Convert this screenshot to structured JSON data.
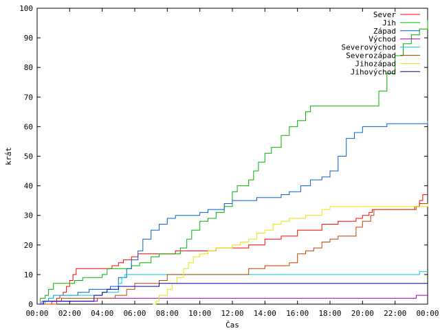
{
  "chart_data": {
    "type": "line",
    "title": "",
    "xlabel": "Čas",
    "ylabel": "krát",
    "xlim": [
      0,
      24
    ],
    "ylim": [
      0,
      100
    ],
    "grid": false,
    "legend_position": "top-right",
    "x_ticks": [
      0,
      2,
      4,
      6,
      8,
      10,
      12,
      14,
      16,
      18,
      20,
      22,
      24
    ],
    "x_tick_labels": [
      "00:00",
      "02:00",
      "04:00",
      "06:00",
      "08:00",
      "10:00",
      "12:00",
      "14:00",
      "16:00",
      "18:00",
      "20:00",
      "22:00",
      "00:00"
    ],
    "y_ticks": [
      0,
      10,
      20,
      30,
      40,
      50,
      60,
      70,
      80,
      90,
      100
    ],
    "y_tick_labels": [
      "0",
      "10",
      "20",
      "30",
      "40",
      "50",
      "60",
      "70",
      "80",
      "90",
      "100"
    ],
    "series": [
      {
        "name": "Sever",
        "color": "#ff0000",
        "points": [
          [
            0.6,
            0
          ],
          [
            0.9,
            1
          ],
          [
            1.2,
            2
          ],
          [
            1.4,
            3
          ],
          [
            1.6,
            4
          ],
          [
            1.8,
            6
          ],
          [
            2.0,
            8
          ],
          [
            2.2,
            10
          ],
          [
            2.4,
            12
          ],
          [
            3.5,
            12
          ],
          [
            4.5,
            12
          ],
          [
            4.6,
            13
          ],
          [
            5.0,
            14
          ],
          [
            5.3,
            15
          ],
          [
            5.8,
            16
          ],
          [
            6.2,
            17
          ],
          [
            7.0,
            17
          ],
          [
            7.8,
            17
          ],
          [
            8.5,
            18
          ],
          [
            11.0,
            19
          ],
          [
            12.0,
            19
          ],
          [
            13.0,
            20
          ],
          [
            14.0,
            22
          ],
          [
            15.0,
            23
          ],
          [
            16.0,
            25
          ],
          [
            17.0,
            25
          ],
          [
            17.5,
            27
          ],
          [
            18.5,
            28
          ],
          [
            19.0,
            28
          ],
          [
            19.6,
            29
          ],
          [
            20.0,
            30
          ],
          [
            20.4,
            31
          ],
          [
            20.6,
            32
          ],
          [
            23.0,
            32
          ],
          [
            23.2,
            33
          ],
          [
            23.5,
            35
          ],
          [
            23.7,
            37
          ],
          [
            24.0,
            37
          ]
        ]
      },
      {
        "name": "Jih",
        "color": "#00b000",
        "points": [
          [
            0,
            0
          ],
          [
            0.2,
            2
          ],
          [
            0.5,
            3
          ],
          [
            0.7,
            5
          ],
          [
            1.0,
            7
          ],
          [
            2.0,
            7
          ],
          [
            2.3,
            8
          ],
          [
            2.8,
            9
          ],
          [
            3.5,
            9
          ],
          [
            4.0,
            10
          ],
          [
            4.3,
            12
          ],
          [
            5.0,
            12
          ],
          [
            5.8,
            13
          ],
          [
            6.3,
            14
          ],
          [
            7.0,
            16
          ],
          [
            7.5,
            17
          ],
          [
            8.3,
            17
          ],
          [
            8.8,
            19
          ],
          [
            9.2,
            22
          ],
          [
            9.5,
            25
          ],
          [
            10.0,
            28
          ],
          [
            10.5,
            29
          ],
          [
            11.0,
            31
          ],
          [
            11.5,
            33
          ],
          [
            12.0,
            38
          ],
          [
            12.3,
            40
          ],
          [
            13.0,
            42
          ],
          [
            13.3,
            45
          ],
          [
            13.6,
            48
          ],
          [
            14.0,
            51
          ],
          [
            14.4,
            53
          ],
          [
            15.0,
            57
          ],
          [
            15.5,
            60
          ],
          [
            16.0,
            62
          ],
          [
            16.5,
            65
          ],
          [
            16.8,
            67
          ],
          [
            18.0,
            67
          ],
          [
            20.0,
            67
          ],
          [
            20.5,
            67
          ],
          [
            21.0,
            72
          ],
          [
            21.5,
            78
          ],
          [
            22.0,
            84
          ],
          [
            22.5,
            88
          ],
          [
            23.0,
            91
          ],
          [
            23.5,
            93
          ],
          [
            24.0,
            96
          ]
        ]
      },
      {
        "name": "Západ",
        "color": "#0060d0",
        "points": [
          [
            0,
            0
          ],
          [
            0.4,
            1
          ],
          [
            0.7,
            2
          ],
          [
            1.0,
            3
          ],
          [
            2.0,
            3
          ],
          [
            2.5,
            4
          ],
          [
            3.2,
            5
          ],
          [
            4.0,
            5
          ],
          [
            4.5,
            6
          ],
          [
            5.0,
            9
          ],
          [
            5.5,
            12
          ],
          [
            5.8,
            15
          ],
          [
            6.2,
            18
          ],
          [
            6.5,
            22
          ],
          [
            7.0,
            25
          ],
          [
            7.5,
            27
          ],
          [
            8.0,
            29
          ],
          [
            8.5,
            30
          ],
          [
            9.5,
            30
          ],
          [
            10.0,
            31
          ],
          [
            10.5,
            32
          ],
          [
            11.0,
            32
          ],
          [
            11.5,
            34
          ],
          [
            12.0,
            35
          ],
          [
            13.0,
            35
          ],
          [
            13.5,
            36
          ],
          [
            15.0,
            37
          ],
          [
            15.5,
            38
          ],
          [
            16.2,
            40
          ],
          [
            16.8,
            42
          ],
          [
            17.5,
            43
          ],
          [
            18.0,
            45
          ],
          [
            18.5,
            50
          ],
          [
            19.0,
            56
          ],
          [
            19.5,
            58
          ],
          [
            20.0,
            60
          ],
          [
            21.0,
            60
          ],
          [
            21.5,
            61
          ],
          [
            23.5,
            61
          ],
          [
            24.0,
            62
          ]
        ]
      },
      {
        "name": "Východ",
        "color": "#a000c0",
        "points": [
          [
            0,
            0
          ],
          [
            0.3,
            1
          ],
          [
            3.5,
            1
          ],
          [
            3.7,
            2
          ],
          [
            23.0,
            2
          ],
          [
            23.3,
            3
          ],
          [
            24.0,
            3
          ]
        ]
      },
      {
        "name": "Severovýchod",
        "color": "#00c8e8",
        "points": [
          [
            0,
            0
          ],
          [
            0.5,
            1
          ],
          [
            0.7,
            2
          ],
          [
            1.0,
            3
          ],
          [
            3.5,
            3
          ],
          [
            4.0,
            4
          ],
          [
            5.0,
            7
          ],
          [
            5.2,
            9
          ],
          [
            5.4,
            10
          ],
          [
            10.0,
            10
          ],
          [
            20.0,
            10
          ],
          [
            23.5,
            11
          ],
          [
            24.0,
            11
          ]
        ]
      },
      {
        "name": "Severozápad",
        "color": "#c04000",
        "points": [
          [
            0,
            0
          ],
          [
            1.2,
            1
          ],
          [
            1.5,
            2
          ],
          [
            4.5,
            2
          ],
          [
            4.8,
            3
          ],
          [
            5.5,
            5
          ],
          [
            6.0,
            7
          ],
          [
            7.5,
            8
          ],
          [
            8.0,
            10
          ],
          [
            10.0,
            10
          ],
          [
            12.5,
            10
          ],
          [
            13.0,
            12
          ],
          [
            14.0,
            13
          ],
          [
            15.0,
            13
          ],
          [
            15.5,
            14
          ],
          [
            16.0,
            17
          ],
          [
            16.5,
            18
          ],
          [
            17.0,
            19
          ],
          [
            17.5,
            21
          ],
          [
            18.0,
            22
          ],
          [
            18.5,
            23
          ],
          [
            19.0,
            23
          ],
          [
            19.6,
            26
          ],
          [
            20.0,
            28
          ],
          [
            20.5,
            30
          ],
          [
            20.7,
            32
          ],
          [
            23.0,
            32
          ],
          [
            23.3,
            33
          ],
          [
            23.5,
            34
          ],
          [
            24.0,
            34
          ]
        ]
      },
      {
        "name": "Jihozápad",
        "color": "#e8e800",
        "points": [
          [
            7.1,
            0
          ],
          [
            7.3,
            1
          ],
          [
            7.5,
            3
          ],
          [
            8.0,
            5
          ],
          [
            8.3,
            7
          ],
          [
            8.6,
            9
          ],
          [
            9.0,
            12
          ],
          [
            9.3,
            14
          ],
          [
            9.6,
            16
          ],
          [
            10.0,
            17
          ],
          [
            10.5,
            18
          ],
          [
            11.0,
            19
          ],
          [
            12.0,
            20
          ],
          [
            12.5,
            21
          ],
          [
            13.0,
            22
          ],
          [
            13.5,
            24
          ],
          [
            14.0,
            25
          ],
          [
            14.5,
            27
          ],
          [
            15.0,
            28
          ],
          [
            15.5,
            29
          ],
          [
            16.0,
            29
          ],
          [
            16.5,
            30
          ],
          [
            17.0,
            30
          ],
          [
            17.5,
            32
          ],
          [
            18.0,
            33
          ],
          [
            22.0,
            33
          ],
          [
            24.0,
            34
          ]
        ]
      },
      {
        "name": "Jihovýchod",
        "color": "#0000b0",
        "points": [
          [
            0,
            0
          ],
          [
            0.4,
            1
          ],
          [
            3.0,
            1
          ],
          [
            3.5,
            3
          ],
          [
            4.0,
            4
          ],
          [
            4.3,
            5
          ],
          [
            5.0,
            6
          ],
          [
            7.0,
            6
          ],
          [
            7.5,
            7
          ],
          [
            24.0,
            7
          ]
        ]
      }
    ]
  }
}
